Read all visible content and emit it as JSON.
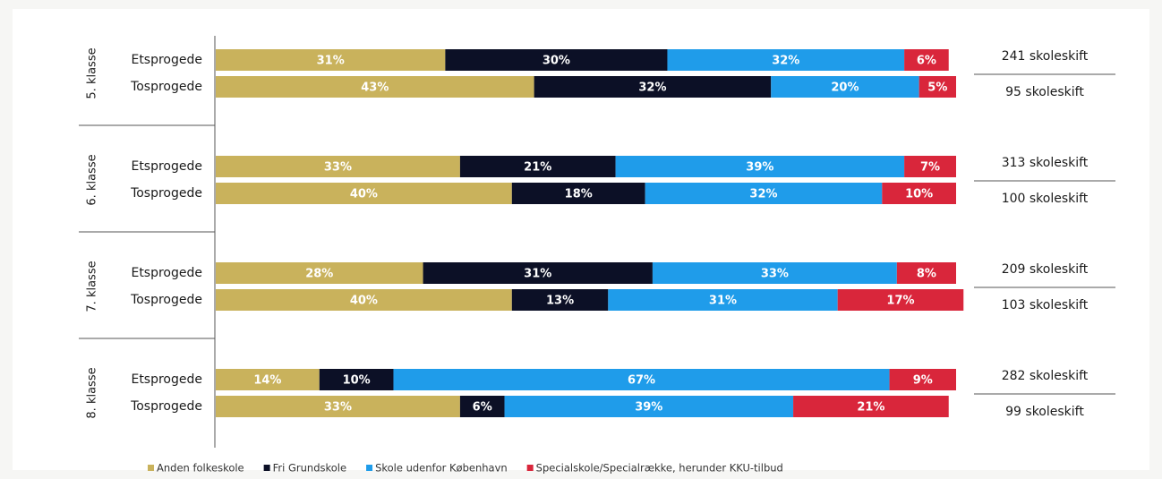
{
  "chart_data": {
    "type": "stacked-bar-horizontal",
    "groups": [
      "5. klasse",
      "6. klasse",
      "7. klasse",
      "8. klasse"
    ],
    "categories": [
      "Etsprogede",
      "Tosprogede",
      "Etsprogede",
      "Tosprogede",
      "Etsprogede",
      "Tosprogede",
      "Etsprogede",
      "Tosprogede"
    ],
    "xlim": [
      0,
      100
    ],
    "series": [
      {
        "name": "Anden folkeskole",
        "color": "#c9b25c",
        "values": [
          31,
          43,
          33,
          40,
          28,
          40,
          14,
          33
        ],
        "value_labels": [
          "31%",
          "43%",
          "33%",
          "40%",
          "28%",
          "40%",
          "14%",
          "33%"
        ]
      },
      {
        "name": "Fri Grundskole",
        "color": "#0c1026",
        "values": [
          30,
          32,
          21,
          18,
          31,
          13,
          10,
          6
        ],
        "value_labels": [
          "30%",
          "32%",
          "21%",
          "18%",
          "31%",
          "13%",
          "10%",
          "6%"
        ]
      },
      {
        "name": "Skole udenfor København",
        "color": "#1f9cea",
        "values": [
          32,
          20,
          39,
          32,
          33,
          31,
          67,
          39
        ],
        "value_labels": [
          "32%",
          "20%",
          "39%",
          "32%",
          "33%",
          "31%",
          "67%",
          "39%"
        ]
      },
      {
        "name": "Specialskole/Specialrække, herunder KKU-tilbud",
        "color": "#d9263b",
        "values": [
          6,
          5,
          7,
          10,
          8,
          17,
          9,
          21
        ],
        "value_labels": [
          "6%",
          "5%",
          "7%",
          "10%",
          "8%",
          "17%",
          "9%",
          "21%"
        ]
      }
    ],
    "annotations": [
      "241 skoleskift",
      "95 skoleskift",
      "313 skoleskift",
      "100 skoleskift",
      "209 skoleskift",
      "103 skoleskift",
      "282 skoleskift",
      "99 skoleskift"
    ],
    "legend": "bottom"
  }
}
